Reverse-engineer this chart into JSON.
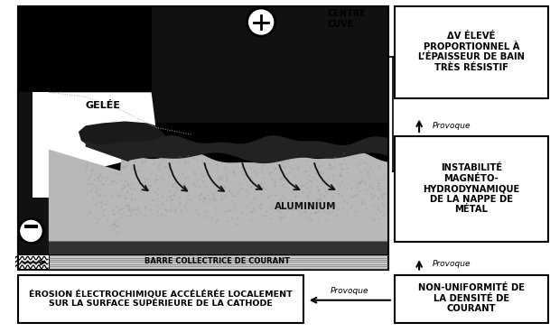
{
  "bg_color": "#ffffff",
  "box1_text": "ΔV ÉLEVÉ\nPROPORTIONNEL À\nL’ÉPAISSEUR DE BAIN\nTRÈS RÉSISTIF",
  "box2_text": "INSTABILITÉ\nMAGNÉTO-\nHYDRODYNAMIQUE\nDE LA NAPPE DE\nMÉTAL",
  "box3_text": "NON-UNIFORMITÉ DE\nLA DENSITÉ DE\nCOURANT",
  "box4_text": "ÉROSION ÉLECTROCHIMIQUE ACCÉLÉRÉE LOCALEMENT\nSUR LA SURFACE SUPÉRIEURE DE LA CATHODE",
  "provoque1": "Provoque",
  "provoque2": "Provoque",
  "provoque3": "Provoque",
  "centre_cuve": "CENTRE\nCUVE",
  "gelee": "GELÉE",
  "aluminium": "ALUMINIUM",
  "barre": "BARRE COLLECTRICE DE COURANT"
}
